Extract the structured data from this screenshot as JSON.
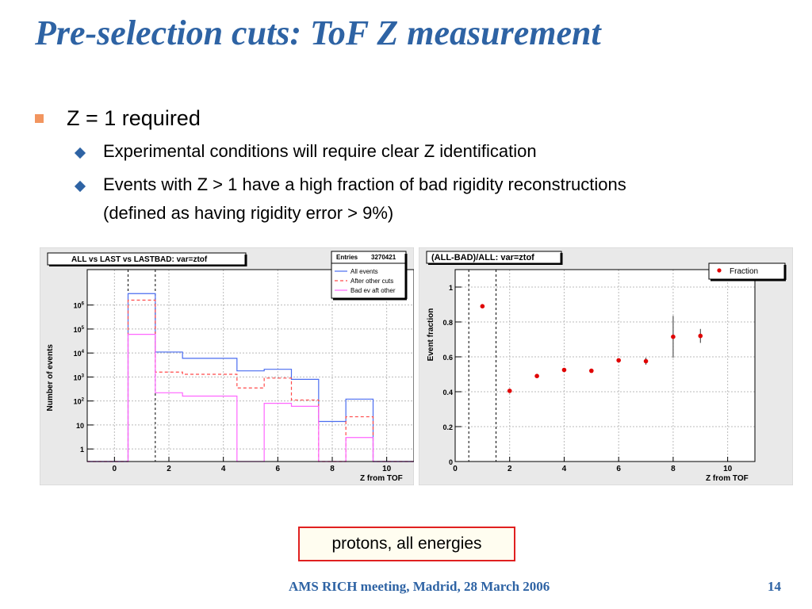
{
  "slide": {
    "title": "Pre-selection cuts: ToF Z measurement",
    "bullet_main": "Z = 1 required",
    "sub_bullets": [
      "Experimental conditions will require clear Z identification",
      "Events with Z > 1 have a high fraction of bad rigidity reconstructions (defined as having rigidity error > 9%)"
    ],
    "note": "protons, all energies",
    "footer": "AMS RICH meeting, Madrid, 28 March 2006",
    "page_number": "14"
  },
  "chart_data": [
    {
      "type": "step-histogram",
      "title": "ALL vs LAST vs LASTBAD: var=ztof",
      "stats_label": "Entries",
      "stats_value": "3270421",
      "xlabel": "Z from TOF",
      "ylabel": "Number of events",
      "xlim": [
        -1,
        11
      ],
      "y_log": true,
      "ylim": [
        0.3,
        30000000
      ],
      "x_ticks": [
        "0",
        "2",
        "4",
        "6",
        "8",
        "10"
      ],
      "y_ticks": [
        "1",
        "10",
        "10^2",
        "10^3",
        "10^4",
        "10^5",
        "10^6"
      ],
      "cut_lines_x": [
        0.5,
        1.5
      ],
      "bin_edges": [
        -1,
        0.5,
        1.5,
        2.5,
        3.5,
        4.5,
        5.5,
        6.5,
        7.5,
        8.5,
        9.5,
        10.5,
        11
      ],
      "legend": [
        "All events",
        "After other cuts",
        "Bad ev aft other"
      ],
      "series": [
        {
          "name": "All events",
          "color": "#4a6cf0",
          "dash": "",
          "values": [
            0.3,
            3000000,
            11000,
            6000,
            6000,
            1800,
            2100,
            800,
            14,
            120,
            0.3,
            0.3
          ]
        },
        {
          "name": "After other cuts",
          "color": "#ff4a4a",
          "dash": "4,3",
          "values": [
            0.3,
            1600000,
            1600,
            1300,
            1300,
            350,
            900,
            110,
            0.3,
            22,
            0.3,
            0.3
          ]
        },
        {
          "name": "Bad ev aft other",
          "color": "#ff66ff",
          "dash": "",
          "values": [
            0.3,
            60000,
            220,
            160,
            160,
            0.3,
            80,
            60,
            0.3,
            3,
            0.3,
            0.3
          ]
        }
      ],
      "grid": true,
      "legend_position": "top-right"
    },
    {
      "type": "scatter",
      "title": "(ALL-BAD)/ALL: var=ztof",
      "xlabel": "Z from TOF",
      "ylabel": "Event fraction",
      "xlim": [
        0,
        11
      ],
      "ylim": [
        0,
        1.1
      ],
      "x_ticks": [
        "0",
        "2",
        "4",
        "6",
        "8",
        "10"
      ],
      "y_ticks": [
        "0",
        "0.2",
        "0.4",
        "0.6",
        "0.8",
        "1"
      ],
      "cut_lines_x": [
        0.5,
        1.5
      ],
      "legend": [
        "Fraction"
      ],
      "series": [
        {
          "name": "Fraction",
          "color": "#e00000",
          "x": [
            1,
            2,
            3,
            4,
            5,
            6,
            7,
            8,
            9
          ],
          "y": [
            0.89,
            0.405,
            0.49,
            0.525,
            0.52,
            0.58,
            0.575,
            0.715,
            0.72
          ],
          "err": [
            0,
            0,
            0,
            0,
            0,
            0.01,
            0.02,
            0.12,
            0.04
          ]
        }
      ],
      "grid": true,
      "legend_position": "top-right"
    }
  ]
}
